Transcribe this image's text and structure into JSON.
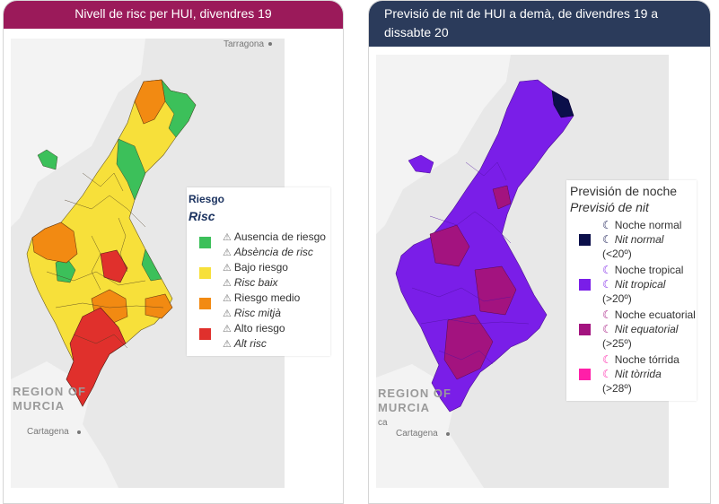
{
  "left_panel": {
    "title": "Nivell de risc per HUI, divendres 19",
    "map": {
      "labels": {
        "tarragona": "Tarragona",
        "region": "REGION OF",
        "murcia": "MURCIA",
        "cartagena": "Cartagena"
      }
    },
    "legend": {
      "title": "Riesgo",
      "subtitle": "Risc",
      "items": [
        {
          "es": "Ausencia de riesgo",
          "va": "Absència de risc",
          "color": "#3cc05a"
        },
        {
          "es": "Bajo riesgo",
          "va": "Risc baix",
          "color": "#f7e03a"
        },
        {
          "es": "Riesgo medio",
          "va": "Risc mitjà",
          "color": "#f28a12"
        },
        {
          "es": "Alto riesgo",
          "va": "Alt risc",
          "color": "#e0302c"
        }
      ]
    }
  },
  "right_panel": {
    "title": "Previsió de nit de HUI a demà, de divendres 19 a dissabte 20",
    "map": {
      "labels": {
        "region": "REGION OF",
        "murcia": "MURCIA",
        "cartagena": "Cartagena",
        "ca": "ca"
      }
    },
    "legend": {
      "title": "Previsión de noche",
      "subtitle": "Previsió de nit",
      "items": [
        {
          "es": "Noche normal",
          "va": "Nit normal",
          "range": "(<20º)",
          "color": "#0b0f4a"
        },
        {
          "es": "Noche tropical",
          "va": "Nit tropical",
          "range": "(>20º)",
          "color": "#7a1ee8"
        },
        {
          "es": "Noche ecuatorial",
          "va": "Nit equatorial",
          "range": "(>25º)",
          "color": "#a3137f"
        },
        {
          "es": "Noche tórrida",
          "va": "Nit tòrrida",
          "range": "(>28º)",
          "color": "#ff1fa8"
        }
      ]
    }
  },
  "icons": {
    "risk_icon": "warning-triangle-icon",
    "night_icon": "crescent-moon-icon",
    "warning_glyph": "⚠",
    "moon_glyph": "☾"
  }
}
